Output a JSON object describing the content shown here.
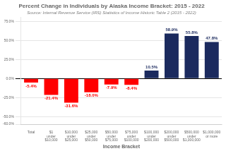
{
  "chart_data": {
    "type": "bar",
    "title": "Percent Change in Individuals by Alaska Income Bracket: 2015 - 2022",
    "subtitle": "Source: Internal Revenue Service (IRS) Statistics of Income Historic Table 2 (2015 - 2022)",
    "xlabel": "Income Bracket",
    "categories": [
      "Total",
      "$1\nunder\n$10,000",
      "$10,000\nunder\n$25,000",
      "$25,000\nunder\n$50,000",
      "$50,000\nunder\n$75,000",
      "$75,000\nunder\n$100,000",
      "$100,000\nunder\n$200,000",
      "$200,000\nunder\n$500,000",
      "$500,000\nunder\n$1,000,000",
      "$1,000,000\nor more"
    ],
    "values": [
      -5.4,
      -21.4,
      -31.6,
      -18.0,
      -7.9,
      -8.4,
      10.5,
      58.9,
      55.8,
      47.8
    ],
    "value_labels": [
      "-5.4%",
      "-21.4%",
      "-31.6%",
      "-18.0%",
      "-7.9%",
      "-8.4%",
      "10.5%",
      "58.9%",
      "55.8%",
      "47.8%"
    ],
    "colors": [
      "#FF0000",
      "#FF0000",
      "#FF0000",
      "#FF0000",
      "#FF0000",
      "#FF0000",
      "#1B2A5E",
      "#1B2A5E",
      "#1B2A5E",
      "#1B2A5E"
    ],
    "data_labels": true,
    "ylim": [
      -60,
      80
    ],
    "yticks": [
      {
        "value": -60.0,
        "label": "-60.0%"
      },
      {
        "value": -50.0,
        "label": "-50.0%"
      },
      {
        "value": -25.0,
        "label": "-25.0%"
      },
      {
        "value": 0.0,
        "label": "0.0%"
      },
      {
        "value": 25.0,
        "label": "25.0%"
      },
      {
        "value": 50.0,
        "label": "50.0%"
      },
      {
        "value": 75.0,
        "label": "75.0%"
      }
    ],
    "grid": true
  }
}
